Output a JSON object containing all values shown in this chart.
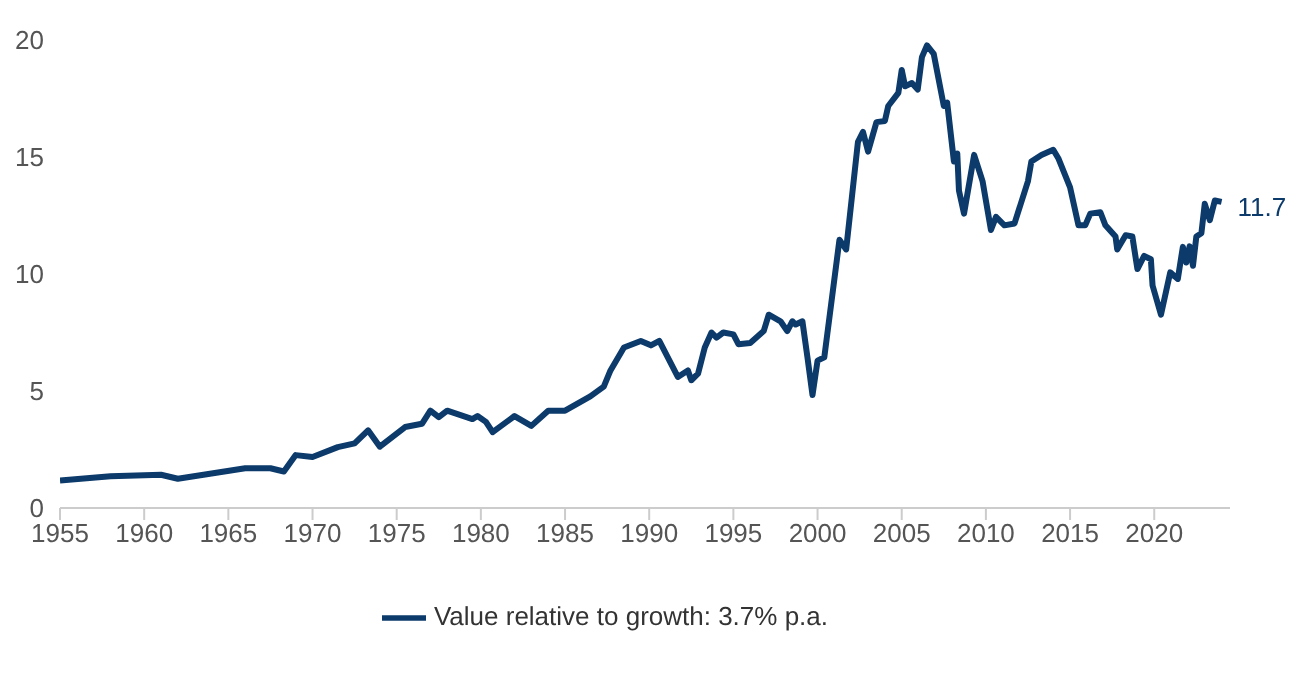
{
  "chart_data": {
    "type": "line",
    "xlim": [
      1955,
      2024.5
    ],
    "xticks": [
      1955,
      1960,
      1965,
      1970,
      1975,
      1980,
      1985,
      1990,
      1995,
      2000,
      2005,
      2010,
      2015,
      2020
    ],
    "ylim": [
      0,
      20
    ],
    "yticks": [
      0,
      5,
      10,
      15,
      20
    ],
    "grid": false,
    "legend": "bottom",
    "annotations": [
      "11.7"
    ],
    "x": [
      1955,
      1958,
      1961,
      1962,
      1966,
      1967.5,
      1968.3,
      1969,
      1970,
      1971.5,
      1972.5,
      1973.3,
      1974,
      1975.5,
      1976.5,
      1977,
      1977.5,
      1978,
      1979.5,
      1979.8,
      1980.3,
      1980.7,
      1982,
      1983,
      1984,
      1985,
      1986.5,
      1987.3,
      1987.7,
      1988.5,
      1989.5,
      1990.1,
      1990.6,
      1991.7,
      1992.3,
      1992.5,
      1992.9,
      1993.3,
      1993.7,
      1994,
      1994.4,
      1995,
      1995.3,
      1996,
      1996.8,
      1997.1,
      1997.8,
      1998.2,
      1998.5,
      1998.7,
      1999.1,
      1999.4,
      1999.7,
      2000,
      2000.4,
      2001.3,
      2001.7,
      2002.4,
      2002.7,
      2003,
      2003.5,
      2004,
      2004.2,
      2004.8,
      2005,
      2005.2,
      2005.6,
      2005.95,
      2006.2,
      2006.5,
      2006.9,
      2007.5,
      2007.7,
      2008.1,
      2008.3,
      2008.4,
      2008.7,
      2009.3,
      2009.8,
      2010.3,
      2010.6,
      2011.1,
      2011.7,
      2012.5,
      2012.7,
      2013.3,
      2014,
      2014.3,
      2015,
      2015.5,
      2015.9,
      2016.2,
      2016.8,
      2017.1,
      2017.7,
      2017.8,
      2018.3,
      2018.7,
      2019,
      2019.4,
      2019.8,
      2019.9,
      2020.4,
      2020.95,
      2021.4,
      2021.7,
      2021.9,
      2022.1,
      2022.3,
      2022.5,
      2022.8,
      2023,
      2023.3,
      2023.6,
      2024
    ],
    "series": [
      {
        "name": "Value relative to growth: 3.7% p.a.",
        "color": "#0b3a6b",
        "values": [
          1.17,
          1.36,
          1.42,
          1.25,
          1.7,
          1.7,
          1.56,
          2.26,
          2.18,
          2.6,
          2.76,
          3.32,
          2.62,
          3.46,
          3.6,
          4.16,
          3.88,
          4.16,
          3.8,
          3.93,
          3.68,
          3.24,
          3.93,
          3.51,
          4.16,
          4.16,
          4.77,
          5.19,
          5.88,
          6.86,
          7.14,
          6.95,
          7.14,
          5.6,
          5.88,
          5.46,
          5.74,
          6.86,
          7.5,
          7.28,
          7.5,
          7.42,
          7.0,
          7.05,
          7.56,
          8.26,
          7.98,
          7.56,
          7.98,
          7.84,
          7.98,
          6.44,
          4.83,
          6.3,
          6.44,
          11.46,
          11.05,
          15.65,
          16.07,
          15.23,
          16.49,
          16.54,
          17.18,
          17.74,
          18.72,
          18.02,
          18.16,
          17.88,
          19.27,
          19.77,
          19.41,
          17.18,
          17.32,
          14.81,
          15.15,
          13.56,
          12.58,
          15.09,
          13.97,
          11.88,
          12.44,
          12.08,
          12.16,
          13.97,
          14.81,
          15.09,
          15.31,
          14.95,
          13.7,
          12.08,
          12.08,
          12.58,
          12.64,
          12.08,
          11.6,
          11.05,
          11.66,
          11.6,
          10.21,
          10.77,
          10.63,
          9.51,
          8.26,
          10.07,
          9.79,
          11.16,
          10.49,
          11.18,
          10.35,
          11.6,
          11.74,
          13.0,
          12.3,
          13.14,
          13.08
        ]
      }
    ]
  }
}
